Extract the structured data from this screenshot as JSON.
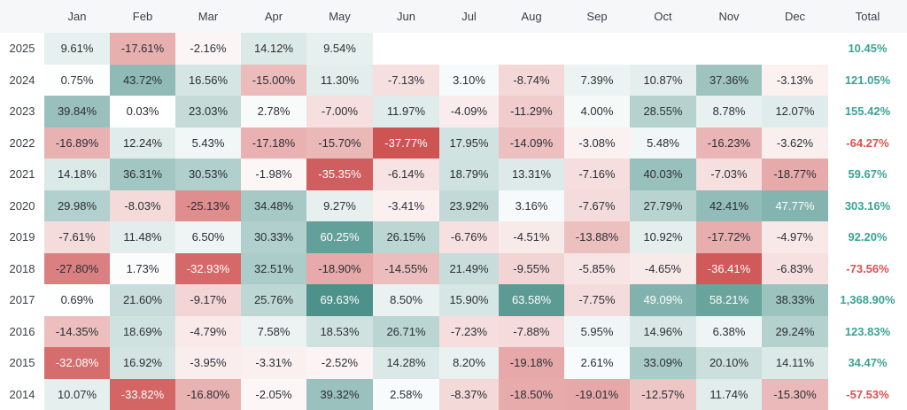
{
  "table": {
    "header": [
      "Jan",
      "Feb",
      "Mar",
      "Apr",
      "May",
      "Jun",
      "Jul",
      "Aug",
      "Sep",
      "Oct",
      "Nov",
      "Dec",
      "Total"
    ],
    "rows": [
      {
        "year": "2025",
        "cells": [
          "9.61%",
          "-17.61%",
          "-2.16%",
          "14.12%",
          "9.54%",
          null,
          null,
          null,
          null,
          null,
          null,
          null
        ],
        "total": "10.45%"
      },
      {
        "year": "2024",
        "cells": [
          "0.75%",
          "43.72%",
          "16.56%",
          "-15.00%",
          "11.30%",
          "-7.13%",
          "3.10%",
          "-8.74%",
          "7.39%",
          "10.87%",
          "37.36%",
          "-3.13%"
        ],
        "total": "121.05%"
      },
      {
        "year": "2023",
        "cells": [
          "39.84%",
          "0.03%",
          "23.03%",
          "2.78%",
          "-7.00%",
          "11.97%",
          "-4.09%",
          "-11.29%",
          "4.00%",
          "28.55%",
          "8.78%",
          "12.07%"
        ],
        "total": "155.42%"
      },
      {
        "year": "2022",
        "cells": [
          "-16.89%",
          "12.24%",
          "5.43%",
          "-17.18%",
          "-15.70%",
          "-37.77%",
          "17.95%",
          "-14.09%",
          "-3.08%",
          "5.48%",
          "-16.23%",
          "-3.62%"
        ],
        "total": "-64.27%"
      },
      {
        "year": "2021",
        "cells": [
          "14.18%",
          "36.31%",
          "30.53%",
          "-1.98%",
          "-35.35%",
          "-6.14%",
          "18.79%",
          "13.31%",
          "-7.16%",
          "40.03%",
          "-7.03%",
          "-18.77%"
        ],
        "total": "59.67%"
      },
      {
        "year": "2020",
        "cells": [
          "29.98%",
          "-8.03%",
          "-25.13%",
          "34.48%",
          "9.27%",
          "-3.41%",
          "23.92%",
          "3.16%",
          "-7.67%",
          "27.79%",
          "42.41%",
          "47.77%"
        ],
        "total": "303.16%"
      },
      {
        "year": "2019",
        "cells": [
          "-7.61%",
          "11.48%",
          "6.50%",
          "30.33%",
          "60.25%",
          "26.15%",
          "-6.76%",
          "-4.51%",
          "-13.88%",
          "10.92%",
          "-17.72%",
          "-4.97%"
        ],
        "total": "92.20%"
      },
      {
        "year": "2018",
        "cells": [
          "-27.80%",
          "1.73%",
          "-32.93%",
          "32.51%",
          "-18.90%",
          "-14.55%",
          "21.49%",
          "-9.55%",
          "-5.85%",
          "-4.65%",
          "-36.41%",
          "-6.83%"
        ],
        "total": "-73.56%"
      },
      {
        "year": "2017",
        "cells": [
          "0.69%",
          "21.60%",
          "-9.17%",
          "25.76%",
          "69.63%",
          "8.50%",
          "15.90%",
          "63.58%",
          "-7.75%",
          "49.09%",
          "58.21%",
          "38.33%"
        ],
        "total": "1,368.90%"
      },
      {
        "year": "2016",
        "cells": [
          "-14.35%",
          "18.69%",
          "-4.79%",
          "7.58%",
          "18.53%",
          "26.71%",
          "-7.23%",
          "-7.88%",
          "5.95%",
          "14.96%",
          "6.38%",
          "29.24%"
        ],
        "total": "123.83%"
      },
      {
        "year": "2015",
        "cells": [
          "-32.08%",
          "16.92%",
          "-3.95%",
          "-3.31%",
          "-2.52%",
          "14.28%",
          "8.20%",
          "-19.18%",
          "2.61%",
          "33.09%",
          "20.10%",
          "14.11%"
        ],
        "total": "34.47%"
      },
      {
        "year": "2014",
        "cells": [
          "10.07%",
          "-33.82%",
          "-16.80%",
          "-2.05%",
          "39.32%",
          "2.58%",
          "-8.37%",
          "-18.50%",
          "-19.01%",
          "-12.57%",
          "11.74%",
          "-15.30%"
        ],
        "total": "-57.53%"
      }
    ]
  }
}
